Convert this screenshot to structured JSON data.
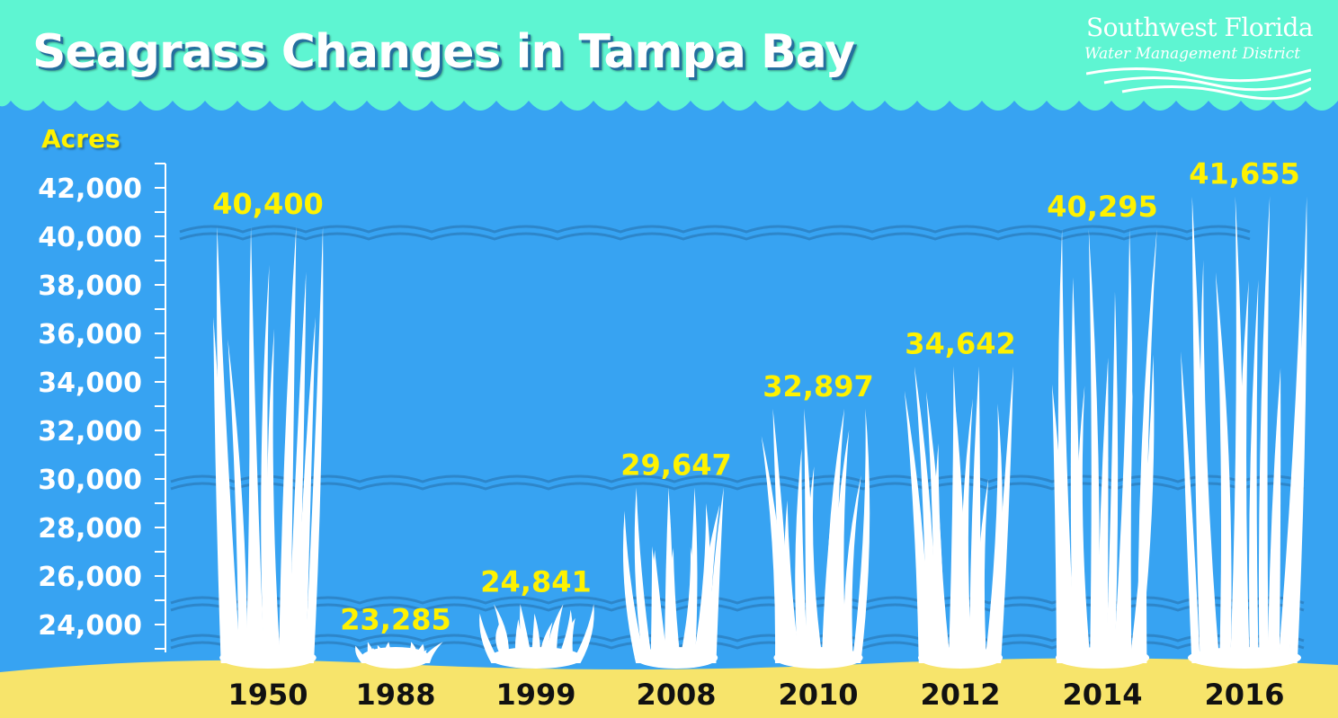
{
  "title": "Seagrass Changes in Tampa Bay",
  "logo": {
    "line1": "Southwest Florida",
    "line2": "Water Management District"
  },
  "colors": {
    "water": "#37a3f2",
    "surface": "#5ef5d2",
    "sand": "#f7e46b",
    "grass": "#ffffff",
    "value_label": "#fff200",
    "category_label": "#111111"
  },
  "chart_data": {
    "type": "bar",
    "title": "Seagrass Changes in Tampa Bay",
    "xlabel": "",
    "ylabel": "Acres",
    "ylim": [
      22500,
      42800
    ],
    "yticks": [
      24000,
      26000,
      28000,
      30000,
      32000,
      34000,
      36000,
      38000,
      40000,
      42000
    ],
    "ytick_labels": [
      "24,000",
      "26,000",
      "28,000",
      "30,000",
      "32,000",
      "34,000",
      "36,000",
      "38,000",
      "40,000",
      "42,000"
    ],
    "categories": [
      "1950",
      "1988",
      "1999",
      "2008",
      "2010",
      "2012",
      "2014",
      "2016"
    ],
    "values": [
      40400,
      23285,
      24841,
      29647,
      32897,
      34642,
      40295,
      41655
    ],
    "value_labels": [
      "40,400",
      "23,285",
      "24,841",
      "29,647",
      "32,897",
      "34,642",
      "40,295",
      "41,655"
    ],
    "mark": "seagrass blades",
    "grid": false
  }
}
